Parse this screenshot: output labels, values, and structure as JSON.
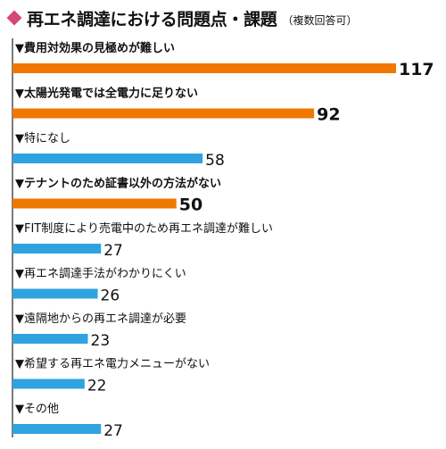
{
  "header": {
    "title": "再エネ調達における問題点・課題",
    "subtitle": "（複数回答可）"
  },
  "colors": {
    "diamond": "#d6457b",
    "highlight_bar": "#f07800",
    "normal_bar": "#2fa3e0",
    "axis": "#222222"
  },
  "chart_data": {
    "type": "bar",
    "orientation": "horizontal",
    "title": "再エネ調達における問題点・課題",
    "subtitle": "（複数回答可）",
    "categories": [
      "▼費用対効果の見極めが難しい",
      "▼太陽光発電では全電力に足りない",
      "▼特になし",
      "▼テナントのため証書以外の方法がない",
      "▼FIT制度により売電中のため再エネ調達が難しい",
      "▼再エネ調達手法がわかりにくい",
      "▼遠隔地からの再エネ調達が必要",
      "▼希望する再エネ電力メニューがない",
      "▼その他"
    ],
    "values": [
      117,
      92,
      58,
      50,
      27,
      26,
      23,
      22,
      27
    ],
    "highlighted": [
      true,
      true,
      false,
      true,
      false,
      false,
      false,
      false,
      false
    ],
    "grid": false,
    "legend": "none"
  }
}
